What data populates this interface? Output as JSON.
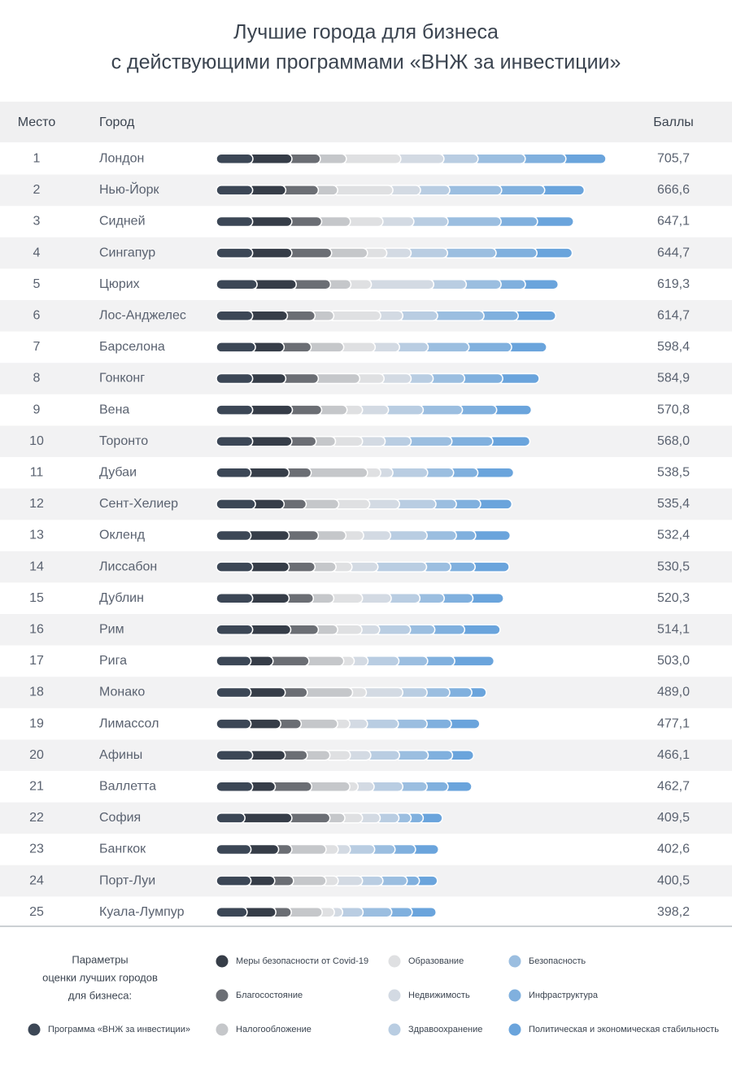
{
  "chart_data": {
    "type": "stacked-bar-table",
    "title": [
      "Лучшие города для бизнеса",
      "с действующими программами «ВНЖ за инвестиции»"
    ],
    "columns": [
      "Место",
      "Город",
      "Баллы"
    ],
    "ranks": [
      1,
      2,
      3,
      4,
      5,
      6,
      7,
      8,
      9,
      10,
      11,
      12,
      13,
      14,
      15,
      16,
      17,
      18,
      19,
      20,
      21,
      22,
      23,
      24,
      25
    ],
    "categories": [
      "Лондон",
      "Нью-Йорк",
      "Сидней",
      "Сингапур",
      "Цюрих",
      "Лос-Анджелес",
      "Барселона",
      "Гонконг",
      "Вена",
      "Торонто",
      "Дубаи",
      "Сент-Хелиер",
      "Окленд",
      "Лиссабон",
      "Дублин",
      "Рим",
      "Рига",
      "Монако",
      "Лимассол",
      "Афины",
      "Валлетта",
      "София",
      "Бангкок",
      "Порт-Луи",
      "Куала-Лумпур"
    ],
    "values": [
      705.7,
      666.6,
      647.1,
      644.7,
      619.3,
      614.7,
      598.4,
      584.9,
      570.8,
      568.0,
      538.5,
      535.4,
      532.4,
      530.5,
      520.3,
      514.1,
      503.0,
      489.0,
      477.1,
      466.1,
      462.7,
      409.5,
      402.6,
      400.5,
      398.2
    ],
    "value_labels": [
      "705,7",
      "666,6",
      "647,1",
      "644,7",
      "619,3",
      "614,7",
      "598,4",
      "584,9",
      "570,8",
      "568,0",
      "538,5",
      "535,4",
      "532,4",
      "530,5",
      "520,3",
      "514,1",
      "503,0",
      "489,0",
      "477,1",
      "466,1",
      "462,7",
      "409,5",
      "402,6",
      "400,5",
      "398,2"
    ],
    "legend_title": [
      "Параметры",
      "оценки лучших городов",
      "для бизнеса:"
    ],
    "series": [
      {
        "name": "Программа «ВНЖ за инвестиции»",
        "color": "#3c4756",
        "values": [
          57.4,
          57,
          57,
          57,
          65,
          57,
          62,
          57,
          57,
          57,
          54,
          62,
          54,
          57,
          57,
          57,
          54,
          54,
          54,
          57,
          57,
          43,
          54,
          54,
          47
        ]
      },
      {
        "name": "Меры безопасности от Covid-19",
        "color": "#363d48",
        "values": [
          70.7,
          60,
          71,
          71,
          71,
          63,
          52,
          60,
          72,
          71,
          69,
          52,
          69,
          66,
          66,
          69,
          40,
          62,
          54,
          59,
          41,
          85,
          50,
          43,
          52
        ]
      },
      {
        "name": "Благосостояние",
        "color": "#6b6e74",
        "values": [
          51.5,
          59,
          54,
          72,
          62,
          50,
          49,
          59,
          53,
          44,
          40,
          40,
          53,
          47,
          44,
          50,
          65,
          40,
          37,
          40,
          66,
          69,
          24,
          34,
          28
        ]
      },
      {
        "name": "Налогообложение",
        "color": "#c5c7ca",
        "values": [
          47.1,
          35,
          52,
          65,
          37,
          34,
          59,
          75,
          46,
          35,
          102,
          59,
          50,
          38,
          37,
          35,
          63,
          82,
          66,
          41,
          69,
          27,
          62,
          59,
          56
        ]
      },
      {
        "name": "Образование",
        "color": "#dfe0e2",
        "values": [
          98.7,
          100,
          59,
          35,
          37,
          85,
          57,
          44,
          28,
          49,
          24,
          56,
          32,
          29,
          52,
          44,
          19,
          25,
          22,
          37,
          15,
          32,
          22,
          22,
          22
        ]
      },
      {
        "name": "Недвижимость",
        "color": "#d3dae3",
        "values": [
          78.1,
          50,
          56,
          44,
          113,
          40,
          44,
          49,
          47,
          41,
          22,
          54,
          49,
          47,
          52,
          32,
          25,
          66,
          32,
          37,
          29,
          32,
          22,
          44,
          15
        ]
      },
      {
        "name": "Здравоохранение",
        "color": "#b9cde2",
        "values": [
          61.9,
          53,
          62,
          66,
          59,
          63,
          52,
          40,
          63,
          47,
          63,
          66,
          66,
          88,
          52,
          56,
          56,
          44,
          56,
          52,
          52,
          34,
          44,
          37,
          37
        ]
      },
      {
        "name": "Безопасность",
        "color": "#9bbee0",
        "values": [
          85.4,
          94,
          96,
          88,
          63,
          84,
          74,
          57,
          71,
          74,
          47,
          37,
          53,
          44,
          44,
          44,
          52,
          41,
          52,
          52,
          44,
          22,
          37,
          44,
          52
        ]
      },
      {
        "name": "Инфраструктура",
        "color": "#80b0de",
        "values": [
          73.6,
          78,
          66,
          74,
          44,
          62,
          77,
          69,
          62,
          74,
          44,
          44,
          35,
          44,
          52,
          54,
          49,
          40,
          44,
          44,
          38,
          22,
          37,
          22,
          37
        ]
      },
      {
        "name": "Политическая и экономическая стабильность",
        "color": "#6aa4dc",
        "values": [
          81.3,
          80.6,
          74.1,
          72.7,
          68.3,
          76.7,
          72.4,
          74.9,
          71.8,
          76.0,
          73.5,
          65.4,
          71.4,
          70.5,
          64.3,
          73.1,
          80.0,
          35.0,
          60.1,
          47.1,
          51.7,
          43.5,
          50.6,
          41.5,
          52.2
        ]
      }
    ]
  }
}
